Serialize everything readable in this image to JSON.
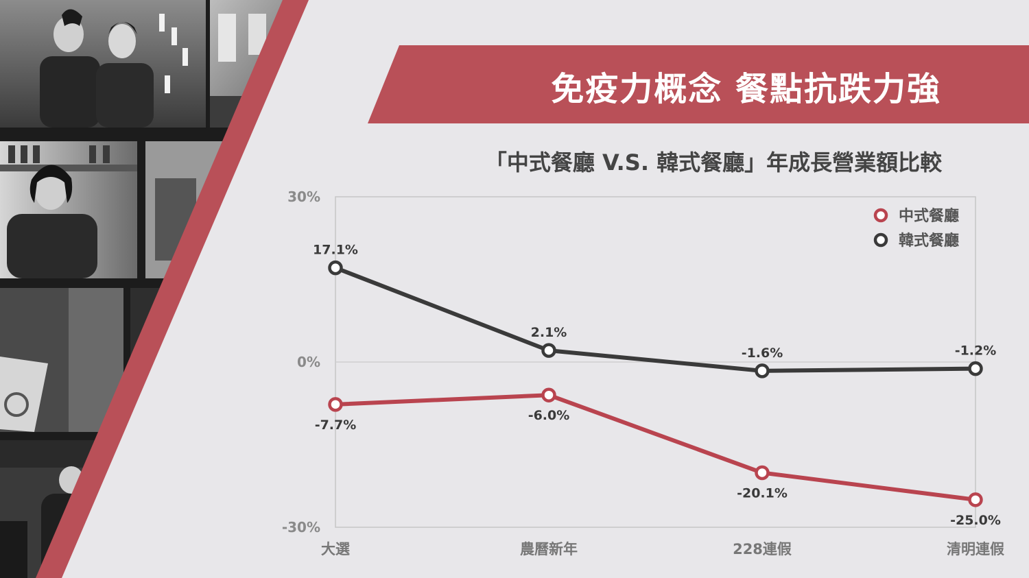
{
  "slide": {
    "title": "免疫力概念 餐點抗跌力強",
    "subtitle": "「中式餐廳 V.S. 韓式餐廳」年成長營業額比較"
  },
  "colors": {
    "accent": "#b95058",
    "series_chinese": "#b9444f",
    "series_korean": "#3a3a3a",
    "background": "#e8e7ea"
  },
  "chart_data": {
    "type": "line",
    "categories": [
      "大選",
      "農曆新年",
      "228連假",
      "清明連假"
    ],
    "series": [
      {
        "name": "中式餐廳",
        "values": [
          -7.7,
          -6.0,
          -20.1,
          -25.0
        ],
        "labels": [
          "-7.7%",
          "-6.0%",
          "-20.1%",
          "-25.0%"
        ]
      },
      {
        "name": "韓式餐廳",
        "values": [
          17.1,
          2.1,
          -1.6,
          -1.2
        ],
        "labels": [
          "17.1%",
          "2.1%",
          "-1.6%",
          "-1.2%"
        ]
      }
    ],
    "ylim": [
      -30,
      30
    ],
    "yticks": [
      {
        "value": 30,
        "label": "30%"
      },
      {
        "value": 0,
        "label": "0%"
      },
      {
        "value": -30,
        "label": "-30%"
      }
    ],
    "title": "「中式餐廳 V.S. 韓式餐廳」年成長營業額比較",
    "xlabel": "",
    "ylabel": "",
    "grid": "zero-line only",
    "legend": "top-right"
  }
}
